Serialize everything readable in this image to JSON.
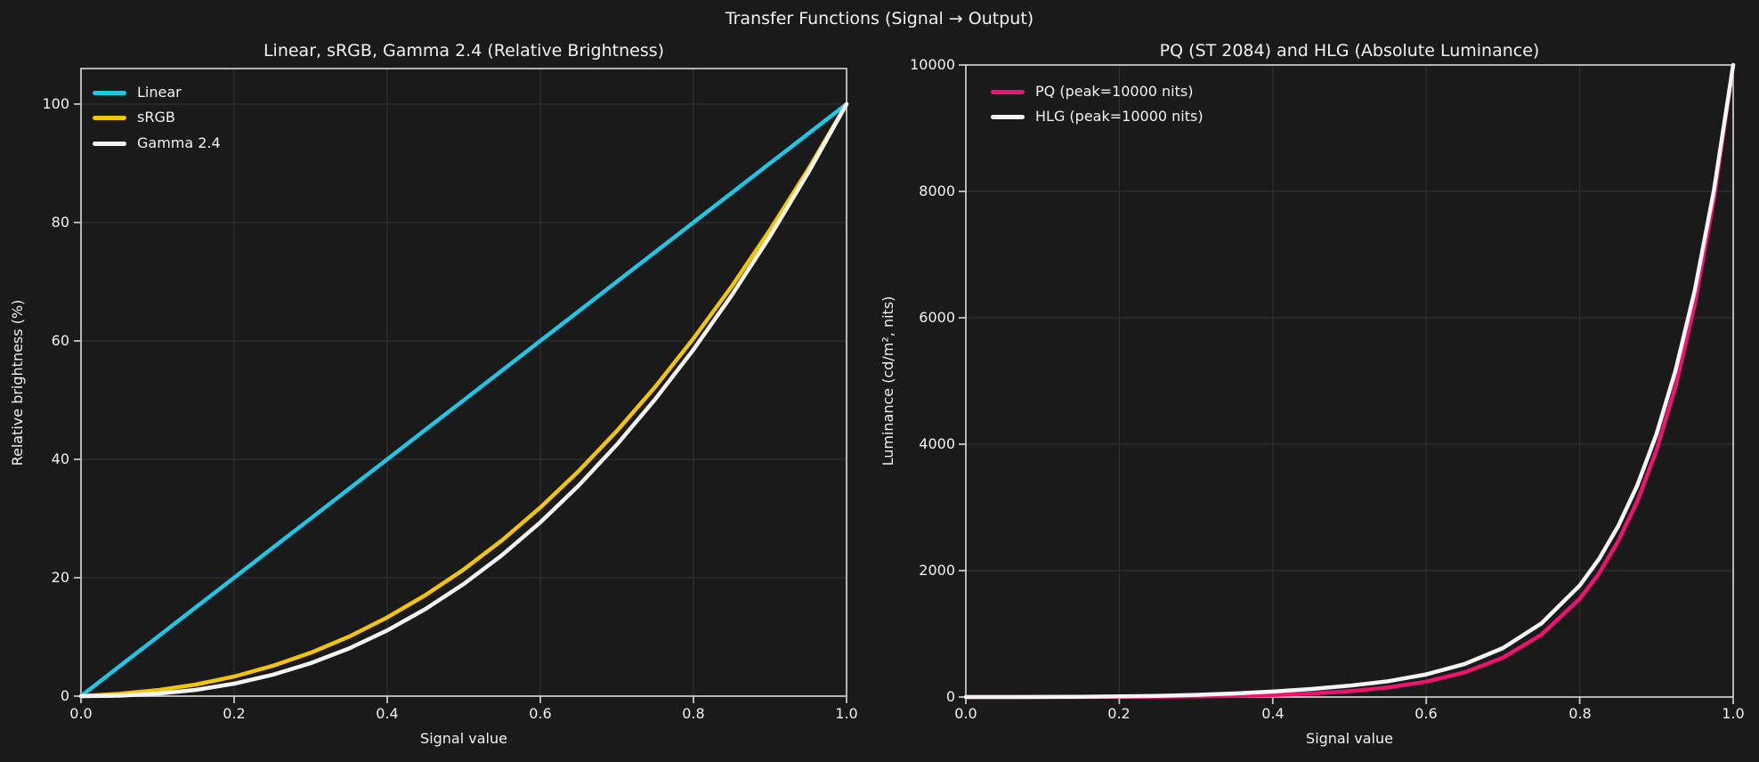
{
  "figure": {
    "title": "Transfer Functions (Signal → Output)",
    "colors": {
      "background": "#1a1a1a",
      "grid": "#2e2e2e",
      "spine": "#c6c6c6",
      "text": "#f2f2f2"
    }
  },
  "chart_data": [
    {
      "type": "line",
      "title": "Linear, sRGB, Gamma 2.4 (Relative Brightness)",
      "xlabel": "Signal value",
      "ylabel": "Relative brightness (%)",
      "xlim": [
        0,
        1
      ],
      "ylim": [
        0,
        106
      ],
      "grid": true,
      "legend_position": "upper-left",
      "xticks": [
        0.0,
        0.2,
        0.4,
        0.6,
        0.8,
        1.0
      ],
      "xtick_labels": [
        "0.0",
        "0.2",
        "0.4",
        "0.6",
        "0.8",
        "1.0"
      ],
      "yticks": [
        0,
        20,
        40,
        60,
        80,
        100
      ],
      "ytick_labels": [
        "0",
        "20",
        "40",
        "60",
        "80",
        "100"
      ],
      "x": [
        0,
        0.05,
        0.1,
        0.15,
        0.2,
        0.25,
        0.3,
        0.35,
        0.4,
        0.45,
        0.5,
        0.55,
        0.6,
        0.65,
        0.7,
        0.75,
        0.8,
        0.85,
        0.9,
        0.95,
        1.0
      ],
      "series": [
        {
          "name": "Linear",
          "color": "#22c5e5",
          "values": [
            0,
            5,
            10,
            15,
            20,
            25,
            30,
            35,
            40,
            45,
            50,
            55,
            60,
            65,
            70,
            75,
            80,
            85,
            90,
            95,
            100
          ]
        },
        {
          "name": "sRGB",
          "color": "#f2c50a",
          "values": [
            0,
            0.39,
            1.0,
            1.96,
            3.31,
            5.09,
            7.32,
            10.04,
            13.29,
            17.06,
            21.4,
            26.32,
            31.86,
            38.01,
            44.79,
            52.24,
            60.39,
            69.21,
            78.74,
            89.0,
            100
          ]
        },
        {
          "name": "Gamma 2.4",
          "color": "#f5f5f5",
          "values": [
            0,
            0.08,
            0.4,
            1.05,
            2.1,
            3.59,
            5.56,
            8.05,
            11.09,
            14.72,
            18.95,
            23.82,
            29.35,
            35.56,
            42.49,
            50.14,
            58.54,
            67.71,
            77.66,
            88.42,
            100
          ]
        }
      ]
    },
    {
      "type": "line",
      "title": "PQ (ST 2084) and HLG (Absolute Luminance)",
      "xlabel": "Signal value",
      "ylabel": "Luminance (cd/m², nits)",
      "xlim": [
        0,
        1
      ],
      "ylim": [
        0,
        10000
      ],
      "grid": true,
      "legend_position": "upper-left",
      "xticks": [
        0.0,
        0.2,
        0.4,
        0.6,
        0.8,
        1.0
      ],
      "xtick_labels": [
        "0.0",
        "0.2",
        "0.4",
        "0.6",
        "0.8",
        "1.0"
      ],
      "yticks": [
        0,
        2000,
        4000,
        6000,
        8000,
        10000
      ],
      "ytick_labels": [
        "0",
        "2000",
        "4000",
        "6000",
        "8000",
        "10000"
      ],
      "x": [
        0,
        0.05,
        0.1,
        0.15,
        0.2,
        0.25,
        0.3,
        0.35,
        0.4,
        0.45,
        0.5,
        0.55,
        0.6,
        0.65,
        0.7,
        0.75,
        0.8,
        0.825,
        0.85,
        0.875,
        0.9,
        0.925,
        0.95,
        0.975,
        1.0
      ],
      "series": [
        {
          "name": "PQ (peak=10000 nits)",
          "color": "#ee1370",
          "values": [
            0,
            0.06,
            0.32,
            1.0,
            2.4,
            5.2,
            10.0,
            18.4,
            32.4,
            55.2,
            91.9,
            151,
            244,
            390,
            622,
            986,
            1553,
            1952,
            2462,
            3095,
            3901,
            4918,
            6222,
            7881,
            10000
          ]
        },
        {
          "name": "HLG (peak=10000 nits)",
          "color": "#f5f5f5",
          "values": [
            0,
            0.1,
            0.97,
            3.6,
            9.2,
            18.9,
            34.1,
            56.1,
            86.6,
            126.8,
            178.6,
            250,
            358,
            523,
            774,
            1163,
            1765,
            2181,
            2700,
            3349,
            4158,
            5171,
            6437,
            8019,
            10000
          ]
        }
      ]
    }
  ]
}
